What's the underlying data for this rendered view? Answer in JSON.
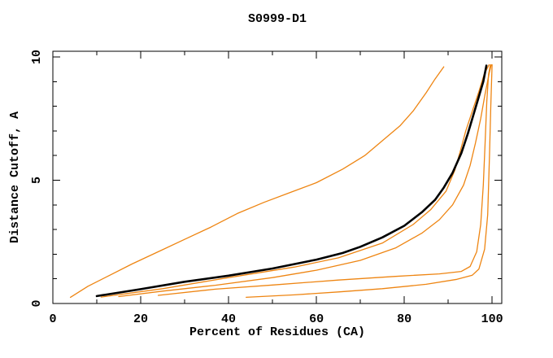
{
  "chart_data": {
    "type": "line",
    "title": "S0999-D1",
    "xlabel": "Percent of Residues (CA)",
    "ylabel": "Distance Cutoff, A",
    "xlim": [
      0,
      102.2
    ],
    "ylim": [
      0,
      10.23
    ],
    "x_major_ticks": [
      0,
      20,
      40,
      60,
      80,
      100
    ],
    "x_minor_ticks": [
      10,
      30,
      50,
      70,
      90
    ],
    "y_major_ticks": [
      0,
      5,
      10
    ],
    "y_minor_ticks": [
      1,
      2,
      3,
      4,
      6,
      7,
      8,
      9
    ],
    "grid": false,
    "legend": "none",
    "colors": {
      "highlight": "#000000",
      "series": "#EE8512",
      "frame": "#000000",
      "background": "#ffffff"
    },
    "series": [
      {
        "name": "model-orange-1-leftmost",
        "color": "#EE8512",
        "width": 1.3,
        "points": [
          [
            4,
            0.25
          ],
          [
            8,
            0.7
          ],
          [
            13,
            1.15
          ],
          [
            18,
            1.6
          ],
          [
            24,
            2.1
          ],
          [
            30,
            2.6
          ],
          [
            36,
            3.1
          ],
          [
            42,
            3.65
          ],
          [
            48,
            4.1
          ],
          [
            54,
            4.5
          ],
          [
            60,
            4.9
          ],
          [
            66,
            5.45
          ],
          [
            71,
            6.0
          ],
          [
            75,
            6.6
          ],
          [
            79,
            7.2
          ],
          [
            82,
            7.8
          ],
          [
            85,
            8.55
          ],
          [
            87,
            9.1
          ],
          [
            89,
            9.6
          ]
        ]
      },
      {
        "name": "model-orange-2-crosses-black",
        "color": "#EE8512",
        "width": 1.3,
        "points": [
          [
            11,
            0.26
          ],
          [
            25,
            0.6
          ],
          [
            40,
            1.05
          ],
          [
            55,
            1.48
          ],
          [
            65,
            1.85
          ],
          [
            75,
            2.45
          ],
          [
            82,
            3.2
          ],
          [
            86,
            3.8
          ],
          [
            89.5,
            4.55
          ],
          [
            91.5,
            5.4
          ],
          [
            92.8,
            6.2
          ],
          [
            94,
            7.0
          ],
          [
            95.5,
            7.8
          ],
          [
            97,
            8.6
          ],
          [
            98.2,
            9.3
          ],
          [
            99.3,
            9.68
          ]
        ]
      },
      {
        "name": "model-orange-3-below-black",
        "color": "#EE8512",
        "width": 1.3,
        "points": [
          [
            15,
            0.28
          ],
          [
            25,
            0.5
          ],
          [
            37,
            0.74
          ],
          [
            50,
            1.05
          ],
          [
            60,
            1.35
          ],
          [
            70,
            1.75
          ],
          [
            78,
            2.25
          ],
          [
            84,
            2.85
          ],
          [
            88,
            3.4
          ],
          [
            91,
            4.0
          ],
          [
            93.5,
            4.8
          ],
          [
            95,
            5.6
          ],
          [
            96.2,
            6.5
          ],
          [
            97.4,
            7.5
          ],
          [
            98.4,
            8.5
          ],
          [
            99.3,
            9.3
          ],
          [
            99.8,
            9.68
          ]
        ]
      },
      {
        "name": "model-orange-4-low-L",
        "color": "#EE8512",
        "width": 1.3,
        "points": [
          [
            24,
            0.33
          ],
          [
            37,
            0.58
          ],
          [
            50,
            0.75
          ],
          [
            65,
            0.95
          ],
          [
            78,
            1.1
          ],
          [
            88,
            1.2
          ],
          [
            93,
            1.3
          ],
          [
            95,
            1.5
          ],
          [
            96.5,
            2.1
          ],
          [
            97.4,
            3.2
          ],
          [
            98,
            4.8
          ],
          [
            98.4,
            6.5
          ],
          [
            98.8,
            8.2
          ],
          [
            99.2,
            9.3
          ],
          [
            99.6,
            9.68
          ]
        ]
      },
      {
        "name": "model-orange-5-lowest-L",
        "color": "#EE8512",
        "width": 1.3,
        "points": [
          [
            44,
            0.25
          ],
          [
            55,
            0.35
          ],
          [
            65,
            0.47
          ],
          [
            75,
            0.6
          ],
          [
            85,
            0.78
          ],
          [
            92,
            0.98
          ],
          [
            95.5,
            1.15
          ],
          [
            97,
            1.4
          ],
          [
            98.3,
            2.2
          ],
          [
            99,
            3.6
          ],
          [
            99.4,
            6.0
          ],
          [
            99.7,
            8.0
          ],
          [
            100,
            9.68
          ]
        ]
      },
      {
        "name": "model-black-highlighted",
        "color": "#000000",
        "width": 2.6,
        "points": [
          [
            10,
            0.3
          ],
          [
            20,
            0.58
          ],
          [
            30,
            0.88
          ],
          [
            40,
            1.13
          ],
          [
            50,
            1.42
          ],
          [
            60,
            1.78
          ],
          [
            66,
            2.05
          ],
          [
            70,
            2.3
          ],
          [
            75,
            2.68
          ],
          [
            80,
            3.15
          ],
          [
            84,
            3.7
          ],
          [
            87,
            4.2
          ],
          [
            89,
            4.7
          ],
          [
            91,
            5.3
          ],
          [
            93,
            6.1
          ],
          [
            94.5,
            6.9
          ],
          [
            96,
            7.8
          ],
          [
            97,
            8.4
          ],
          [
            98,
            9.0
          ],
          [
            98.7,
            9.65
          ]
        ]
      }
    ]
  }
}
